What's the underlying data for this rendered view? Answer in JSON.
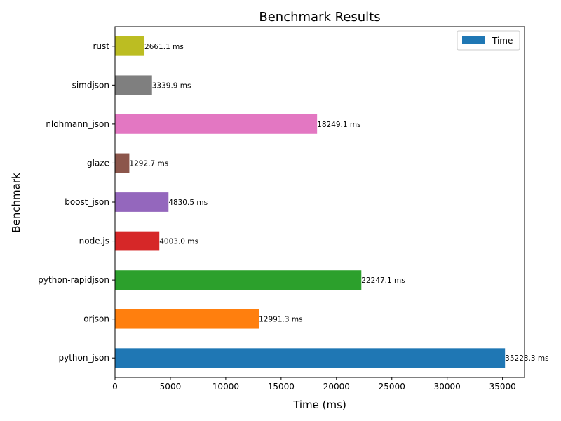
{
  "chart_data": {
    "type": "bar",
    "orientation": "horizontal",
    "title": "Benchmark Results",
    "xlabel": "Time (ms)",
    "ylabel": "Benchmark",
    "xlim": [
      0,
      36985
    ],
    "xticks": [
      0,
      5000,
      10000,
      15000,
      20000,
      25000,
      30000,
      35000
    ],
    "grid": false,
    "legend": {
      "entries": [
        "Time"
      ],
      "placement": "top-right"
    },
    "categories": [
      "python_json",
      "orjson",
      "python-rapidjson",
      "node.js",
      "boost_json",
      "glaze",
      "nlohmann_json",
      "simdjson",
      "rust"
    ],
    "series": [
      {
        "name": "Time",
        "values": [
          35223.3,
          12991.3,
          22247.1,
          4003.0,
          4830.5,
          1292.7,
          18249.1,
          3339.9,
          2661.1
        ],
        "labels": [
          "35223.3 ms",
          "12991.3 ms",
          "22247.1 ms",
          "4003.0 ms",
          "4830.5 ms",
          "1292.7 ms",
          "18249.1 ms",
          "3339.9 ms",
          "2661.1 ms"
        ],
        "colors": [
          "#1f77b4",
          "#ff7f0e",
          "#2ca02c",
          "#d62728",
          "#9467bd",
          "#8c564b",
          "#e377c2",
          "#7f7f7f",
          "#bcbd22"
        ]
      }
    ]
  }
}
